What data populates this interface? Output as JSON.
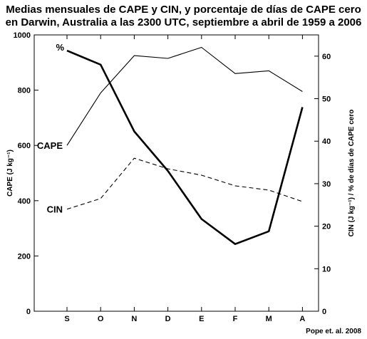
{
  "chart_data": {
    "type": "line",
    "title": "Medias mensuales de CAPE y CIN, y porcentaje de días de CAPE cero",
    "subtitle": "en Darwin, Australia a las 2300 UTC, septiembre a abril de 1959 a 2006",
    "ylabel": "CAPE (J kg⁻¹)",
    "y2label": "CIN (J kg⁻¹) / % de días de CAPE cero",
    "categories": [
      "S",
      "O",
      "N",
      "D",
      "E",
      "F",
      "M",
      "A"
    ],
    "ylim": [
      0,
      1000
    ],
    "y2lim": [
      0,
      65
    ],
    "yticks": [
      "0",
      "200",
      "400",
      "600",
      "800",
      "1000"
    ],
    "y2ticks": [
      "0",
      "10",
      "20",
      "30",
      "40",
      "50",
      "60"
    ],
    "series": [
      {
        "name": "CAPE",
        "axis": "left",
        "style": "thin",
        "values": [
          600,
          790,
          925,
          915,
          955,
          860,
          870,
          795
        ]
      },
      {
        "name": "CIN",
        "axis": "right",
        "style": "dashed",
        "values": [
          24,
          26.5,
          36,
          33.5,
          32,
          29.5,
          28.5,
          25.8
        ]
      },
      {
        "name": "%",
        "axis": "right",
        "style": "thick",
        "values": [
          61.3,
          58,
          42.3,
          33,
          21.7,
          15.8,
          18.8,
          48
        ]
      }
    ],
    "grid": false,
    "credit": "Pope et. al. 2008"
  }
}
